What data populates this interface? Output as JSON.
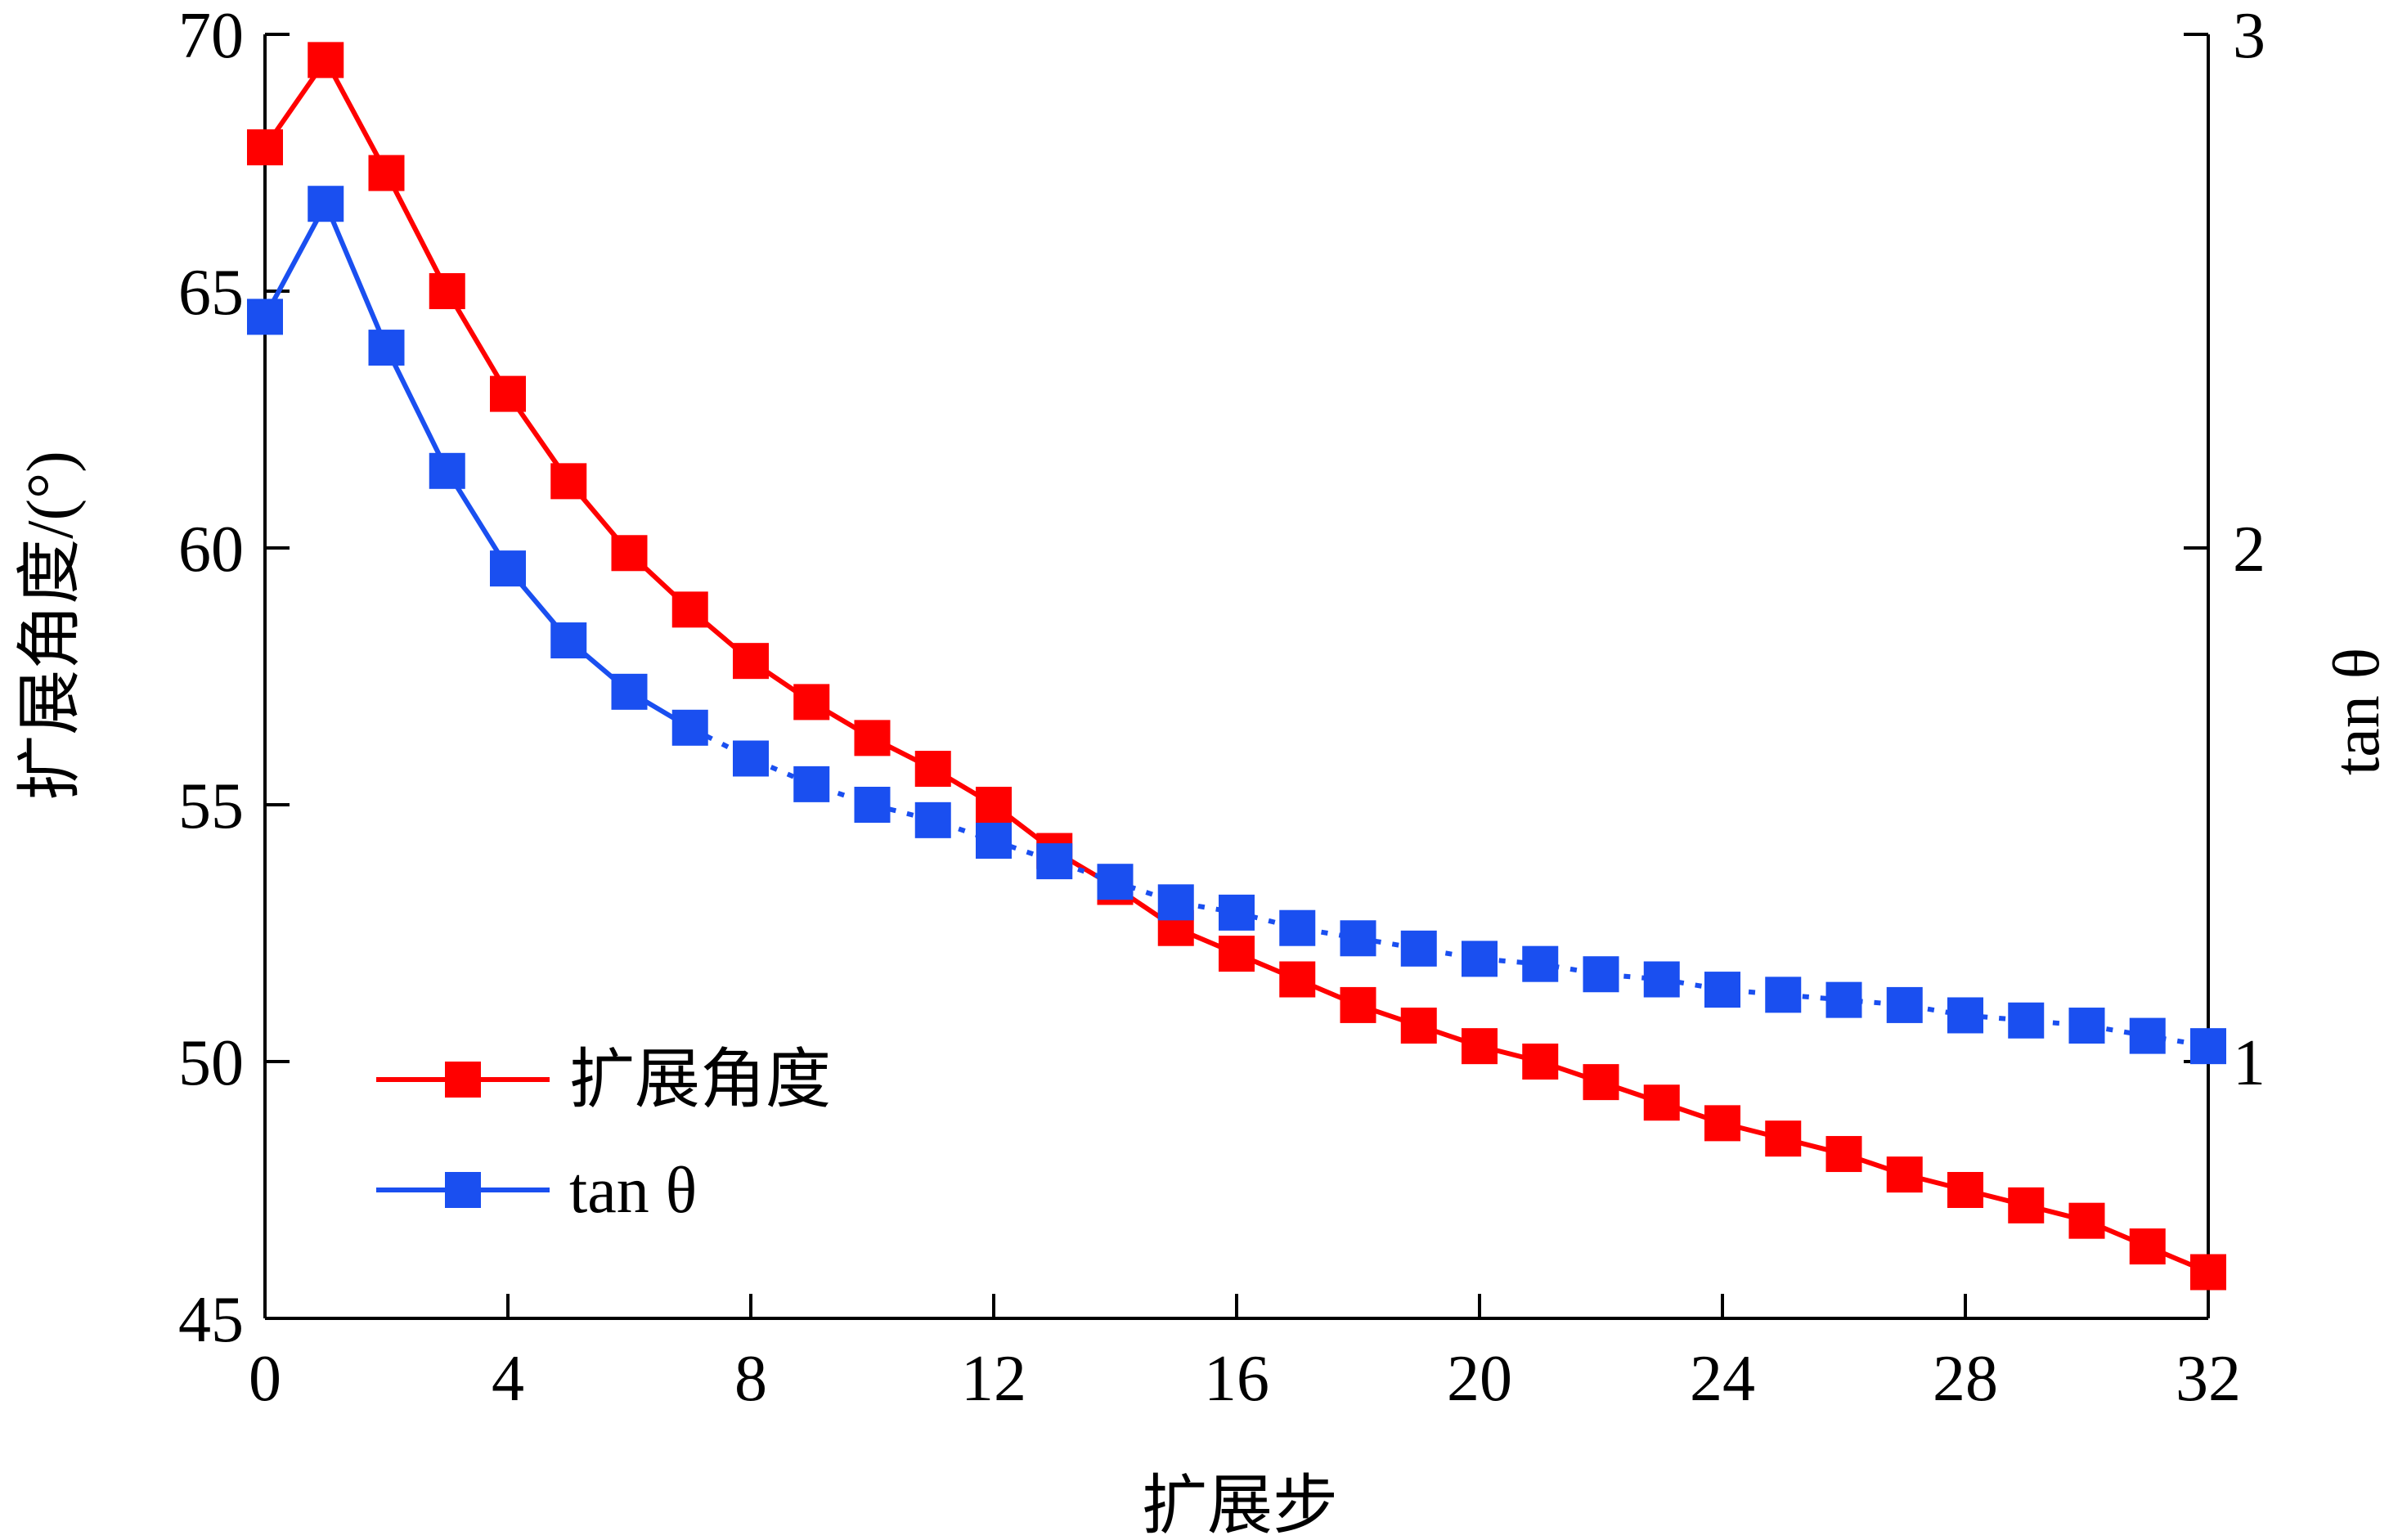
{
  "chart_data": {
    "type": "line",
    "x_axis": {
      "label": "扩展步",
      "range": [
        0,
        32
      ],
      "ticks": [
        0,
        4,
        8,
        12,
        16,
        20,
        24,
        28,
        32
      ]
    },
    "y_axis_left": {
      "label": "扩展角度/(°)",
      "range": [
        45,
        70
      ],
      "ticks": [
        45,
        50,
        55,
        60,
        65,
        70
      ]
    },
    "y_axis_right": {
      "label": "tan θ",
      "range": [
        0.5,
        3
      ],
      "ticks": [
        1,
        2,
        3
      ]
    },
    "grid": false,
    "legend_position": "bottom-left",
    "x": [
      0,
      1,
      2,
      3,
      4,
      5,
      6,
      7,
      8,
      9,
      10,
      11,
      12,
      13,
      14,
      15,
      16,
      17,
      18,
      19,
      20,
      21,
      22,
      23,
      24,
      25,
      26,
      27,
      28,
      29,
      30,
      31,
      32
    ],
    "series": [
      {
        "name": "扩展角度",
        "axis": "left",
        "color": "#ff0000",
        "line_style": "solid",
        "marker": "square",
        "values": [
          67.8,
          69.5,
          67.3,
          65.0,
          63.0,
          61.3,
          59.9,
          58.8,
          57.8,
          57.0,
          56.3,
          55.7,
          55.0,
          54.1,
          53.4,
          52.6,
          52.1,
          51.6,
          51.1,
          50.7,
          50.3,
          50.0,
          49.6,
          49.2,
          48.8,
          48.5,
          48.2,
          47.8,
          47.5,
          47.2,
          46.9,
          46.4,
          45.9
        ]
      },
      {
        "name": "tan θ",
        "axis": "right",
        "color": "#1a4ff0",
        "line_style": "solid-then-dotted",
        "marker": "square",
        "values": [
          2.45,
          2.67,
          2.39,
          2.15,
          1.96,
          1.82,
          1.72,
          1.65,
          1.59,
          1.54,
          1.5,
          1.47,
          1.43,
          1.39,
          1.35,
          1.31,
          1.29,
          1.26,
          1.24,
          1.22,
          1.2,
          1.19,
          1.17,
          1.16,
          1.14,
          1.13,
          1.12,
          1.11,
          1.09,
          1.08,
          1.07,
          1.05,
          1.03
        ]
      }
    ]
  },
  "colors": {
    "angle_series": "#ff0000",
    "tan_series": "#1a4ff0",
    "axes": "#000000"
  }
}
